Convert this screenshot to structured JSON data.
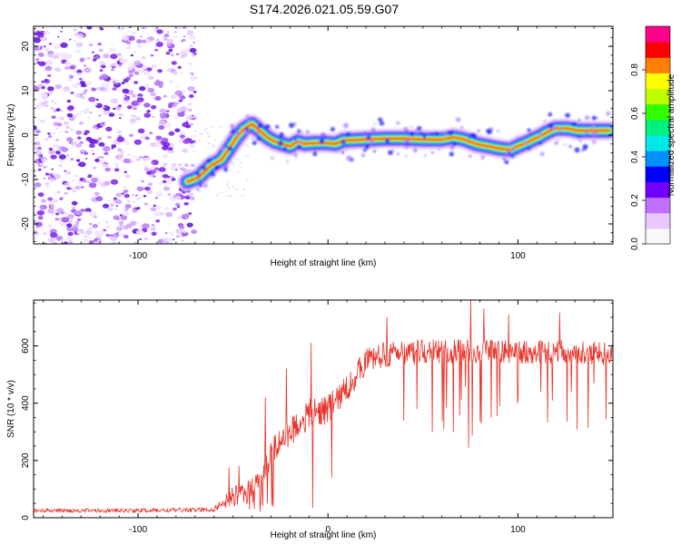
{
  "figure": {
    "title": "S174.2026.021.05.59.G07"
  },
  "chart_data": [
    {
      "type": "heatmap",
      "xlabel": "Height of straight line (km)",
      "ylabel": "Frequency (Hz)",
      "xlim": [
        -155,
        150
      ],
      "ylim": [
        -24.5,
        24.5
      ],
      "x_ticks": [
        -100,
        0,
        100
      ],
      "x_tick_labels": [
        "-100",
        "",
        "100"
      ],
      "y_ticks": [
        -20,
        -10,
        0,
        10,
        20
      ],
      "y_tick_labels": [
        "-20",
        "-10",
        "0",
        "10",
        "20"
      ],
      "colorbar": {
        "label": "Normalized spectral amplitude",
        "range": [
          0,
          1
        ],
        "ticks": [
          0.0,
          0.2,
          0.4,
          0.6,
          0.8
        ],
        "tick_labels": [
          "0.0",
          "0.2",
          "0.4",
          "0.6",
          "0.8"
        ],
        "colors": [
          "#f8f8f8",
          "#e9c8ff",
          "#c070ff",
          "#7000ff",
          "#0000ff",
          "#0090ff",
          "#00e8e8",
          "#00f080",
          "#30ff00",
          "#c0ff00",
          "#ffff00",
          "#ff8000",
          "#ff0000",
          "#ff0088"
        ]
      },
      "noise_region_x": [
        -155,
        -70
      ],
      "ridge": [
        {
          "x": -74,
          "y": -10.5
        },
        {
          "x": -68,
          "y": -9.5
        },
        {
          "x": -62,
          "y": -7
        },
        {
          "x": -56,
          "y": -5.5
        },
        {
          "x": -52,
          "y": -3
        },
        {
          "x": -48,
          "y": -0.5
        },
        {
          "x": -44,
          "y": 1.5
        },
        {
          "x": -40,
          "y": 2.5
        },
        {
          "x": -36,
          "y": 1
        },
        {
          "x": -32,
          "y": -0.5
        },
        {
          "x": -28,
          "y": -1.5
        },
        {
          "x": -24,
          "y": -2
        },
        {
          "x": -20,
          "y": -2.5
        },
        {
          "x": -16,
          "y": -1.5
        },
        {
          "x": -12,
          "y": -2
        },
        {
          "x": -8,
          "y": -1.8
        },
        {
          "x": 0,
          "y": -1.8
        },
        {
          "x": 4,
          "y": -2
        },
        {
          "x": 8,
          "y": -1.2
        },
        {
          "x": 20,
          "y": -1
        },
        {
          "x": 30,
          "y": -0.8
        },
        {
          "x": 40,
          "y": -0.8
        },
        {
          "x": 50,
          "y": -1
        },
        {
          "x": 60,
          "y": -1
        },
        {
          "x": 66,
          "y": -0.5
        },
        {
          "x": 72,
          "y": -1
        },
        {
          "x": 78,
          "y": -2
        },
        {
          "x": 84,
          "y": -2.5
        },
        {
          "x": 90,
          "y": -3
        },
        {
          "x": 96,
          "y": -3.3
        },
        {
          "x": 100,
          "y": -2.5
        },
        {
          "x": 104,
          "y": -1.8
        },
        {
          "x": 108,
          "y": -1
        },
        {
          "x": 112,
          "y": -0.2
        },
        {
          "x": 116,
          "y": 0.8
        },
        {
          "x": 120,
          "y": 1.5
        },
        {
          "x": 126,
          "y": 1.5
        },
        {
          "x": 132,
          "y": 1
        },
        {
          "x": 138,
          "y": 1
        },
        {
          "x": 144,
          "y": 1
        },
        {
          "x": 148,
          "y": 1
        }
      ]
    },
    {
      "type": "line",
      "xlabel": "Height of straight line (km)",
      "ylabel": "SNR (10 * v/v)",
      "xlim": [
        -155,
        150
      ],
      "ylim": [
        0,
        760
      ],
      "x_ticks": [
        -100,
        0,
        100
      ],
      "x_tick_labels": [
        "-100",
        "0",
        "100"
      ],
      "y_ticks": [
        0,
        200,
        400,
        600
      ],
      "y_tick_labels": [
        "0",
        "200",
        "400",
        "600"
      ],
      "color": "#e8332a",
      "series": [
        {
          "name": "SNR",
          "envelope": [
            {
              "x": -155,
              "value": 25
            },
            {
              "x": -100,
              "value": 25
            },
            {
              "x": -60,
              "value": 28
            },
            {
              "x": -55,
              "value": 60
            },
            {
              "x": -45,
              "value": 90
            },
            {
              "x": -35,
              "value": 120
            },
            {
              "x": -30,
              "value": 230
            },
            {
              "x": -20,
              "value": 300
            },
            {
              "x": -10,
              "value": 360
            },
            {
              "x": 0,
              "value": 380
            },
            {
              "x": 10,
              "value": 450
            },
            {
              "x": 20,
              "value": 550
            },
            {
              "x": 30,
              "value": 570
            },
            {
              "x": 50,
              "value": 580
            },
            {
              "x": 70,
              "value": 580
            },
            {
              "x": 90,
              "value": 580
            },
            {
              "x": 110,
              "value": 580
            },
            {
              "x": 130,
              "value": 580
            },
            {
              "x": 150,
              "value": 570
            }
          ],
          "noise": [
            {
              "x": -155,
              "value": 7
            },
            {
              "x": -60,
              "value": 8
            },
            {
              "x": -50,
              "value": 35
            },
            {
              "x": -30,
              "value": 45
            },
            {
              "x": -10,
              "value": 55
            },
            {
              "x": 20,
              "value": 45
            },
            {
              "x": 150,
              "value": 40
            }
          ],
          "spikes": [
            {
              "x": -52,
              "value": 175
            },
            {
              "x": -47,
              "value": 180
            },
            {
              "x": -33,
              "value": 420
            },
            {
              "x": -22,
              "value": 520
            },
            {
              "x": -9,
              "value": 610
            },
            {
              "x": -8,
              "value": 35
            },
            {
              "x": 2,
              "value": 140
            },
            {
              "x": 31,
              "value": 700
            },
            {
              "x": 75,
              "value": 760
            },
            {
              "x": 82,
              "value": 730
            },
            {
              "x": 95,
              "value": 710
            },
            {
              "x": 122,
              "value": 715
            },
            {
              "x": 40,
              "value": 340
            },
            {
              "x": 55,
              "value": 300
            },
            {
              "x": 61,
              "value": 310
            },
            {
              "x": 66,
              "value": 300
            },
            {
              "x": 74,
              "value": 245
            },
            {
              "x": 86,
              "value": 350
            },
            {
              "x": 100,
              "value": 420
            },
            {
              "x": 112,
              "value": 440
            },
            {
              "x": 118,
              "value": 410
            },
            {
              "x": 128,
              "value": 440
            },
            {
              "x": 140,
              "value": 470
            }
          ]
        }
      ]
    }
  ]
}
